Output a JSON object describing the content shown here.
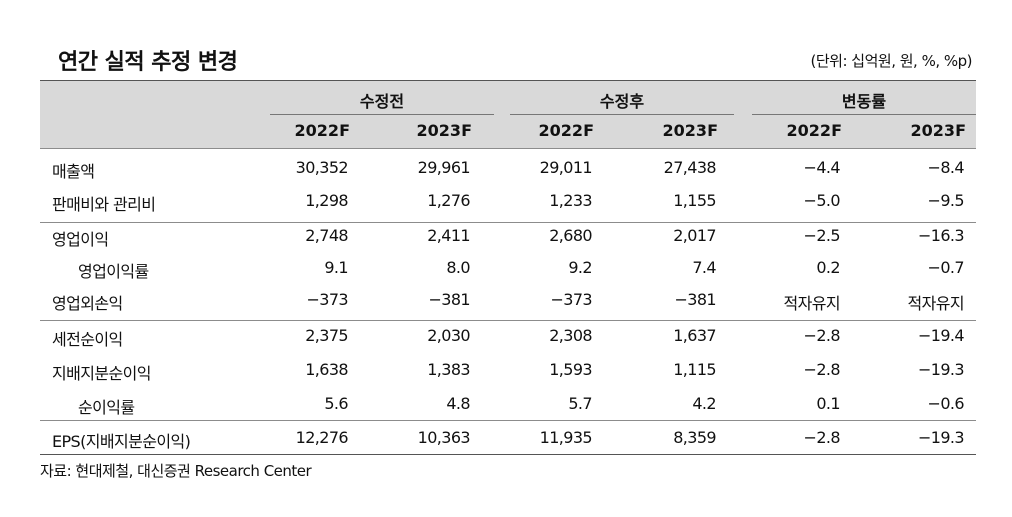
{
  "title": "연간 실적 추정 변경",
  "unit": "(단위: 십억원, 원, %, %p)",
  "groups": [
    "수정전",
    "수정후",
    "변동률"
  ],
  "years": [
    "2022F",
    "2023F",
    "2022F",
    "2023F",
    "2022F",
    "2023F"
  ],
  "rows": [
    {
      "label": "매출액",
      "values": [
        "30,352",
        "29,961",
        "29,011",
        "27,438",
        "−4.4",
        "−8.4"
      ]
    },
    {
      "label": "판매비와 관리비",
      "values": [
        "1,298",
        "1,276",
        "1,233",
        "1,155",
        "−5.0",
        "−9.5"
      ]
    },
    {
      "label": "영업이익",
      "values": [
        "2,748",
        "2,411",
        "2,680",
        "2,017",
        "−2.5",
        "−16.3"
      ]
    },
    {
      "label": "영업이익률",
      "values": [
        "9.1",
        "8.0",
        "9.2",
        "7.4",
        "0.2",
        "−0.7"
      ]
    },
    {
      "label": "영업외손익",
      "values": [
        "−373",
        "−381",
        "−373",
        "−381",
        "적자유지",
        "적자유지"
      ]
    },
    {
      "label": "세전순이익",
      "values": [
        "2,375",
        "2,030",
        "2,308",
        "1,637",
        "−2.8",
        "−19.4"
      ]
    },
    {
      "label": "지배지분순이익",
      "values": [
        "1,638",
        "1,383",
        "1,593",
        "1,115",
        "−2.8",
        "−19.3"
      ]
    },
    {
      "label": "순이익률",
      "values": [
        "5.6",
        "4.8",
        "5.7",
        "4.2",
        "0.1",
        "−0.6"
      ]
    },
    {
      "label": "EPS(지배지분순이익)",
      "values": [
        "12,276",
        "10,363",
        "11,935",
        "8,359",
        "−2.8",
        "−19.3"
      ]
    }
  ],
  "source": "자료: 현대제철, 대신증권 Research Center"
}
